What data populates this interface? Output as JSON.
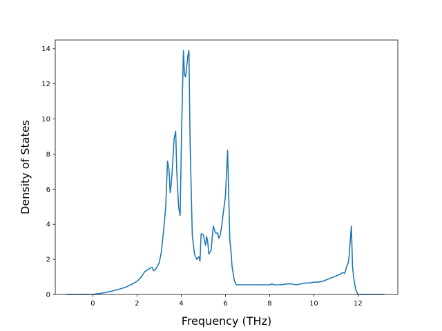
{
  "chart_data": {
    "type": "line",
    "title": "",
    "xlabel": "Frequency (THz)",
    "ylabel": "Density of States",
    "xlim": [
      -1.7,
      13.8
    ],
    "ylim": [
      0,
      14.5
    ],
    "xticks": [
      0,
      2,
      4,
      6,
      8,
      10,
      12
    ],
    "yticks": [
      0,
      2,
      4,
      6,
      8,
      10,
      12,
      14
    ],
    "grid": false,
    "legend": "none",
    "colors": {
      "line": "#1f77b4",
      "axes": "#000000",
      "background": "#ffffff"
    },
    "series": [
      {
        "x": [
          -1.2,
          -0.5,
          0.0,
          0.3,
          0.6,
          0.9,
          1.2,
          1.5,
          1.8,
          2.0,
          2.2,
          2.35,
          2.5,
          2.6,
          2.68,
          2.75,
          2.85,
          3.0,
          3.1,
          3.2,
          3.3,
          3.38,
          3.45,
          3.5,
          3.55,
          3.6,
          3.68,
          3.75,
          3.8,
          3.88,
          3.95,
          4.02,
          4.1,
          4.15,
          4.2,
          4.3,
          4.35,
          4.4,
          4.5,
          4.6,
          4.7,
          4.8,
          4.85,
          4.9,
          4.95,
          5.0,
          5.1,
          5.15,
          5.2,
          5.25,
          5.35,
          5.45,
          5.55,
          5.65,
          5.7,
          5.75,
          5.82,
          5.9,
          6.0,
          6.1,
          6.2,
          6.25,
          6.3,
          6.4,
          6.5,
          6.6,
          6.7,
          7.0,
          7.5,
          8.0,
          8.1,
          8.2,
          8.5,
          8.8,
          9.0,
          9.2,
          9.4,
          9.6,
          9.8,
          10.0,
          10.2,
          10.4,
          10.6,
          10.8,
          11.0,
          11.2,
          11.3,
          11.4,
          11.5,
          11.55,
          11.6,
          11.65,
          11.7,
          11.75,
          11.8,
          11.85,
          11.9,
          12.0,
          12.1,
          13.2
        ],
        "y": [
          0.0,
          0.0,
          0.01,
          0.05,
          0.12,
          0.2,
          0.3,
          0.42,
          0.6,
          0.75,
          1.0,
          1.3,
          1.42,
          1.5,
          1.55,
          1.35,
          1.45,
          1.8,
          2.4,
          3.6,
          5.0,
          7.6,
          7.1,
          5.8,
          6.3,
          7.2,
          8.9,
          9.3,
          7.0,
          5.0,
          4.5,
          9.5,
          13.9,
          12.5,
          12.4,
          13.6,
          13.9,
          8.8,
          3.4,
          2.3,
          2.0,
          2.15,
          1.9,
          3.45,
          3.45,
          3.4,
          2.8,
          3.3,
          3.0,
          2.3,
          2.5,
          3.9,
          3.5,
          3.5,
          3.2,
          3.3,
          3.8,
          4.6,
          5.6,
          8.2,
          3.1,
          2.5,
          1.6,
          0.8,
          0.55,
          0.55,
          0.55,
          0.55,
          0.55,
          0.55,
          0.6,
          0.55,
          0.55,
          0.6,
          0.6,
          0.55,
          0.6,
          0.65,
          0.65,
          0.7,
          0.7,
          0.75,
          0.85,
          0.95,
          1.05,
          1.15,
          1.25,
          1.2,
          1.65,
          1.75,
          2.2,
          3.1,
          3.9,
          1.6,
          1.0,
          0.6,
          0.25,
          0.0,
          0.0,
          0.0
        ]
      }
    ]
  }
}
